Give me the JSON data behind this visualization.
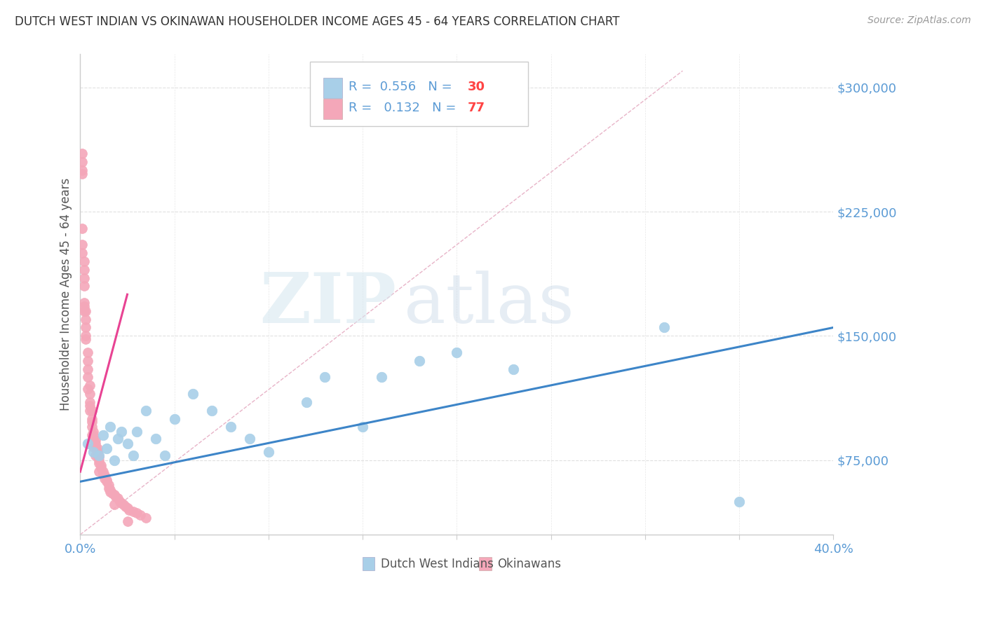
{
  "title": "DUTCH WEST INDIAN VS OKINAWAN HOUSEHOLDER INCOME AGES 45 - 64 YEARS CORRELATION CHART",
  "source": "Source: ZipAtlas.com",
  "ylabel": "Householder Income Ages 45 - 64 years",
  "xlim": [
    0.0,
    0.4
  ],
  "ylim": [
    30000,
    320000
  ],
  "yticks": [
    75000,
    150000,
    225000,
    300000
  ],
  "ytick_labels": [
    "$75,000",
    "$150,000",
    "$225,000",
    "$300,000"
  ],
  "xticks": [
    0.0,
    0.05,
    0.1,
    0.15,
    0.2,
    0.25,
    0.3,
    0.35,
    0.4
  ],
  "blue_color": "#a8cfe8",
  "pink_color": "#f4a7b9",
  "trend_blue": "#3d85c8",
  "trend_pink": "#e84393",
  "ref_line_color": "#e8b4c8",
  "legend_R_blue": "0.556",
  "legend_N_blue": "30",
  "legend_R_pink": "0.132",
  "legend_N_pink": "77",
  "watermark_zip": "ZIP",
  "watermark_atlas": "atlas",
  "blue_scatter_x": [
    0.004,
    0.007,
    0.01,
    0.012,
    0.014,
    0.016,
    0.018,
    0.02,
    0.022,
    0.025,
    0.028,
    0.03,
    0.035,
    0.04,
    0.045,
    0.05,
    0.06,
    0.07,
    0.08,
    0.09,
    0.1,
    0.12,
    0.13,
    0.15,
    0.16,
    0.18,
    0.2,
    0.23,
    0.31,
    0.35
  ],
  "blue_scatter_y": [
    85000,
    80000,
    78000,
    90000,
    82000,
    95000,
    75000,
    88000,
    92000,
    85000,
    78000,
    92000,
    105000,
    88000,
    78000,
    100000,
    115000,
    105000,
    95000,
    88000,
    80000,
    110000,
    125000,
    95000,
    125000,
    135000,
    140000,
    130000,
    155000,
    50000
  ],
  "pink_scatter_x": [
    0.001,
    0.001,
    0.001,
    0.001,
    0.002,
    0.002,
    0.002,
    0.002,
    0.003,
    0.003,
    0.003,
    0.003,
    0.004,
    0.004,
    0.004,
    0.004,
    0.005,
    0.005,
    0.005,
    0.005,
    0.006,
    0.006,
    0.006,
    0.006,
    0.007,
    0.007,
    0.007,
    0.008,
    0.008,
    0.008,
    0.009,
    0.009,
    0.009,
    0.01,
    0.01,
    0.01,
    0.011,
    0.011,
    0.012,
    0.012,
    0.013,
    0.013,
    0.014,
    0.014,
    0.015,
    0.015,
    0.016,
    0.016,
    0.017,
    0.018,
    0.019,
    0.02,
    0.021,
    0.022,
    0.023,
    0.024,
    0.025,
    0.026,
    0.028,
    0.03,
    0.032,
    0.035,
    0.001,
    0.001,
    0.001,
    0.002,
    0.002,
    0.002,
    0.003,
    0.004,
    0.005,
    0.006,
    0.007,
    0.008,
    0.01,
    0.018,
    0.025
  ],
  "pink_scatter_y": [
    260000,
    255000,
    250000,
    248000,
    195000,
    190000,
    185000,
    180000,
    165000,
    160000,
    155000,
    150000,
    140000,
    135000,
    130000,
    125000,
    120000,
    115000,
    110000,
    108000,
    105000,
    100000,
    98000,
    95000,
    92000,
    90000,
    88000,
    87000,
    85000,
    83000,
    82000,
    80000,
    78000,
    77000,
    75000,
    73000,
    72000,
    70000,
    68000,
    67000,
    66000,
    64000,
    63000,
    62000,
    60000,
    58000,
    57000,
    56000,
    55000,
    54000,
    53000,
    52000,
    50000,
    49000,
    48000,
    47000,
    46000,
    45000,
    44000,
    43000,
    42000,
    40000,
    215000,
    205000,
    200000,
    170000,
    168000,
    165000,
    148000,
    118000,
    105000,
    90000,
    83000,
    78000,
    68000,
    48000,
    38000
  ],
  "blue_trend_x": [
    0.0,
    0.4
  ],
  "blue_trend_y": [
    62000,
    155000
  ],
  "pink_trend_x": [
    0.0,
    0.025
  ],
  "pink_trend_y": [
    68000,
    175000
  ],
  "ref_line_x": [
    0.0,
    0.32
  ],
  "ref_line_y": [
    30000,
    310000
  ]
}
